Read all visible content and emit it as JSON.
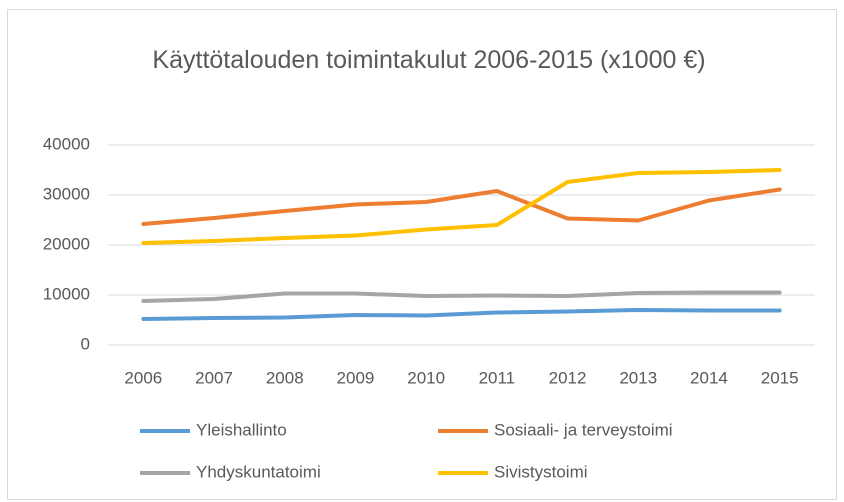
{
  "chart_data": {
    "type": "line",
    "title": "Käyttötalouden toimintakulut 2006-2015 (x1000 €)",
    "categories": [
      "2006",
      "2007",
      "2008",
      "2009",
      "2010",
      "2011",
      "2012",
      "2013",
      "2014",
      "2015"
    ],
    "series": [
      {
        "name": "Yleishallinto",
        "color": "#5b9bd5",
        "values": [
          5200,
          5400,
          5500,
          6000,
          5900,
          6500,
          6700,
          7000,
          6900,
          6900
        ]
      },
      {
        "name": "Sosiaali- ja terveystoimi",
        "color": "#ed7d31",
        "values": [
          24200,
          25400,
          26800,
          28100,
          28600,
          30800,
          25300,
          24900,
          28900,
          31100
        ]
      },
      {
        "name": "Yhdyskuntatoimi",
        "color": "#a5a5a5",
        "values": [
          8800,
          9200,
          10300,
          10300,
          9800,
          9900,
          9800,
          10400,
          10500,
          10500
        ]
      },
      {
        "name": "Sivistystoimi",
        "color": "#ffc000",
        "values": [
          20400,
          20800,
          21400,
          21900,
          23100,
          24000,
          32600,
          34400,
          34600,
          35000
        ]
      }
    ],
    "ylim": [
      0,
      40000
    ],
    "yticks": [
      0,
      10000,
      20000,
      30000,
      40000
    ],
    "grid": true
  }
}
